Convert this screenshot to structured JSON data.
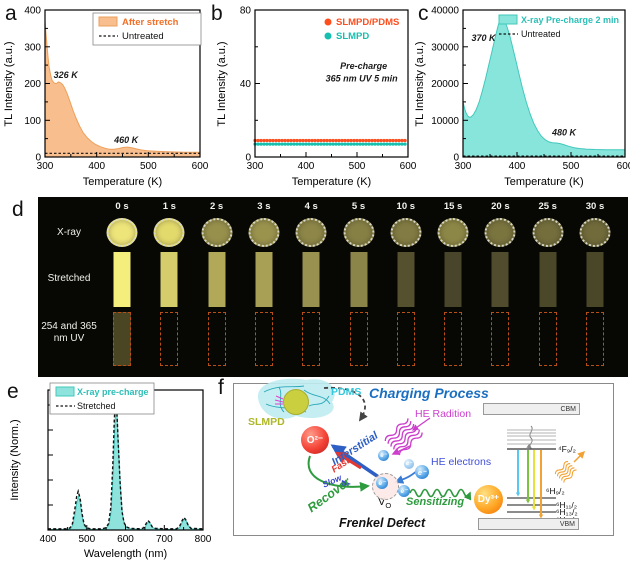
{
  "panel_labels": {
    "a": "a",
    "b": "b",
    "c": "c",
    "d": "d",
    "e": "e",
    "f": "f"
  },
  "chart_data": [
    {
      "id": "a",
      "type": "area",
      "xlabel": "Temperature (K)",
      "ylabel": "TL Intensity (a.u.)",
      "xlim": [
        300,
        600
      ],
      "ylim": [
        0,
        400
      ],
      "xticks": [
        300,
        400,
        500,
        600
      ],
      "xminor": [
        350,
        450,
        550
      ],
      "yticks": [
        0,
        100,
        200,
        300,
        400
      ],
      "yminor": [
        50,
        150,
        250,
        350
      ],
      "series": [
        {
          "name": "After stretch",
          "kind": "area",
          "fill": "#F8BE8D",
          "edge": "#EDA05C",
          "points": [
            [
              300,
              370
            ],
            [
              302,
              335
            ],
            [
              304,
              300
            ],
            [
              306,
              270
            ],
            [
              308,
              245
            ],
            [
              311,
              222
            ],
            [
              314,
              208
            ],
            [
              318,
              201
            ],
            [
              322,
              200
            ],
            [
              326,
              204
            ],
            [
              330,
              202
            ],
            [
              334,
              197
            ],
            [
              338,
              188
            ],
            [
              343,
              172
            ],
            [
              348,
              152
            ],
            [
              354,
              128
            ],
            [
              360,
              106
            ],
            [
              367,
              84
            ],
            [
              374,
              66
            ],
            [
              382,
              52
            ],
            [
              390,
              42
            ],
            [
              398,
              34
            ],
            [
              407,
              28
            ],
            [
              416,
              24
            ],
            [
              425,
              21
            ],
            [
              434,
              21
            ],
            [
              443,
              23
            ],
            [
              452,
              26
            ],
            [
              460,
              27
            ],
            [
              468,
              25
            ],
            [
              477,
              22
            ],
            [
              487,
              19
            ],
            [
              498,
              17
            ],
            [
              510,
              16
            ],
            [
              525,
              15
            ],
            [
              545,
              14
            ],
            [
              570,
              13
            ],
            [
              600,
              13
            ]
          ]
        },
        {
          "name": "Untreated",
          "kind": "dash",
          "color": "#111111",
          "points": [
            [
              300,
              10
            ],
            [
              600,
              10
            ]
          ]
        }
      ],
      "legend": {
        "box": true,
        "items": [
          {
            "swatch": "fill",
            "fill": "#F8BE8D",
            "edge": "#EDA05C",
            "label": "After stretch",
            "color": "#F26F28"
          },
          {
            "swatch": "dash",
            "label": "Untreated",
            "color": "#111111"
          }
        ]
      },
      "annotations": [
        {
          "text": "326 K",
          "x": 340,
          "y": 215
        },
        {
          "text": "460 K",
          "x": 457,
          "y": 38
        }
      ]
    },
    {
      "id": "b",
      "type": "scatter",
      "xlabel": "Temperature (K)",
      "ylabel": "TL Intensity (a.u.)",
      "xlim": [
        300,
        600
      ],
      "ylim": [
        0,
        80
      ],
      "xticks": [
        300,
        400,
        500,
        600
      ],
      "xminor": [
        350,
        450,
        550
      ],
      "yticks": [
        0,
        40,
        80
      ],
      "yminor": [
        20,
        60
      ],
      "series": [
        {
          "name": "SLMPD/PDMS",
          "kind": "dots",
          "color": "#FF4E1E",
          "points": [
            [
              300,
              9
            ],
            [
              600,
              9
            ]
          ]
        },
        {
          "name": "SLMPD",
          "kind": "dots",
          "color": "#17BFAF",
          "points": [
            [
              300,
              7
            ],
            [
              600,
              7
            ]
          ]
        }
      ],
      "legend": {
        "box": false,
        "items": [
          {
            "swatch": "dot",
            "dot": "#FF4E1E",
            "label": "SLMPD/PDMS",
            "color": "#FF4E1E"
          },
          {
            "swatch": "dot",
            "dot": "#17BFAF",
            "label": "SLMPD",
            "color": "#17BFAF"
          }
        ]
      },
      "annotations": [
        {
          "text": "Pre-charge",
          "x": 513,
          "y": 48
        },
        {
          "text": "365 nm UV  5 min",
          "x": 509,
          "y": 41
        }
      ]
    },
    {
      "id": "c",
      "type": "area",
      "xlabel": "Temperature (K)",
      "ylabel": "TL Intensity (a.u.)",
      "xlim": [
        300,
        600
      ],
      "ylim": [
        0,
        40000
      ],
      "xticks": [
        300,
        400,
        500,
        600
      ],
      "xminor": [
        350,
        450,
        550
      ],
      "yticks": [
        0,
        10000,
        20000,
        30000,
        40000
      ],
      "yminor": [
        5000,
        15000,
        25000,
        35000
      ],
      "series": [
        {
          "name": "X-ray Pre-charge 2 min",
          "kind": "area",
          "fill": "#87E5DC",
          "edge": "#43C8BC",
          "points": [
            [
              300,
              15000
            ],
            [
              303,
              13200
            ],
            [
              306,
              11900
            ],
            [
              309,
              11100
            ],
            [
              312,
              10800
            ],
            [
              315,
              10900
            ],
            [
              319,
              11500
            ],
            [
              324,
              12800
            ],
            [
              330,
              15000
            ],
            [
              336,
              18000
            ],
            [
              342,
              21500
            ],
            [
              348,
              25200
            ],
            [
              354,
              29000
            ],
            [
              359,
              32200
            ],
            [
              364,
              35200
            ],
            [
              368,
              37200
            ],
            [
              371,
              38000
            ],
            [
              374,
              37800
            ],
            [
              378,
              36800
            ],
            [
              382,
              35200
            ],
            [
              387,
              32800
            ],
            [
              392,
              29800
            ],
            [
              398,
              26200
            ],
            [
              404,
              22400
            ],
            [
              410,
              18800
            ],
            [
              417,
              15000
            ],
            [
              424,
              11800
            ],
            [
              431,
              9200
            ],
            [
              438,
              7200
            ],
            [
              445,
              5700
            ],
            [
              452,
              4700
            ],
            [
              459,
              4100
            ],
            [
              466,
              3900
            ],
            [
              473,
              3800
            ],
            [
              480,
              3650
            ],
            [
              488,
              3300
            ],
            [
              496,
              2900
            ],
            [
              505,
              2550
            ],
            [
              515,
              2300
            ],
            [
              528,
              2150
            ],
            [
              545,
              2050
            ],
            [
              565,
              2000
            ],
            [
              600,
              1950
            ]
          ]
        },
        {
          "name": "Untreated",
          "kind": "dash",
          "color": "#111111",
          "points": [
            [
              300,
              250
            ],
            [
              600,
              250
            ]
          ]
        }
      ],
      "legend": {
        "box": false,
        "items": [
          {
            "swatch": "fill",
            "fill": "#87E5DC",
            "edge": "#43C8BC",
            "label": "X-ray Pre-charge 2 min",
            "color": "#2BBFB7",
            "fs": 9
          },
          {
            "swatch": "dash",
            "label": "Untreated",
            "color": "#111111",
            "fs": 9
          }
        ]
      },
      "annotations": [
        {
          "text": "370 K",
          "x": 338,
          "y": 31500
        },
        {
          "text": "480 K",
          "x": 487,
          "y": 5800
        }
      ]
    },
    {
      "id": "e",
      "type": "area",
      "xlabel": "Wavelength (nm)",
      "ylabel": "Intensity (Norm.)",
      "xlim": [
        400,
        800
      ],
      "ylim": [
        0,
        1.12
      ],
      "xticks": [
        400,
        500,
        600,
        700,
        800
      ],
      "xminor": [
        450,
        550,
        650,
        750
      ],
      "yticks": [
        0.2,
        0.4,
        0.6,
        0.8,
        1.0
      ],
      "yminor": [],
      "ytick_labels": false,
      "series": [
        {
          "name": "X-ray pre-charge",
          "kind": "area",
          "fill": "#8FE3DD",
          "edge": "#43C8BC",
          "points": [
            [
              400,
              0.005
            ],
            [
              450,
              0.005
            ],
            [
              458,
              0.01
            ],
            [
              464,
              0.04
            ],
            [
              470,
              0.13
            ],
            [
              475,
              0.23
            ],
            [
              479,
              0.27
            ],
            [
              483,
              0.22
            ],
            [
              488,
              0.11
            ],
            [
              493,
              0.04
            ],
            [
              499,
              0.012
            ],
            [
              510,
              0.005
            ],
            [
              540,
              0.005
            ],
            [
              550,
              0.012
            ],
            [
              557,
              0.04
            ],
            [
              563,
              0.15
            ],
            [
              568,
              0.45
            ],
            [
              572,
              0.8
            ],
            [
              575,
              0.97
            ],
            [
              578,
              0.93
            ],
            [
              582,
              0.65
            ],
            [
              587,
              0.33
            ],
            [
              592,
              0.13
            ],
            [
              597,
              0.05
            ],
            [
              603,
              0.02
            ],
            [
              612,
              0.01
            ],
            [
              640,
              0.005
            ],
            [
              648,
              0.012
            ],
            [
              654,
              0.04
            ],
            [
              659,
              0.065
            ],
            [
              664,
              0.05
            ],
            [
              670,
              0.02
            ],
            [
              678,
              0.01
            ],
            [
              700,
              0.005
            ],
            [
              732,
              0.005
            ],
            [
              740,
              0.02
            ],
            [
              746,
              0.06
            ],
            [
              752,
              0.09
            ],
            [
              757,
              0.07
            ],
            [
              763,
              0.03
            ],
            [
              770,
              0.01
            ],
            [
              800,
              0.005
            ]
          ]
        },
        {
          "name": "Stretched",
          "kind": "dash",
          "color": "#111111",
          "dash": "3 2.2",
          "width": 1.4,
          "points": [
            [
              400,
              0.01
            ],
            [
              450,
              0.01
            ],
            [
              457,
              0.018
            ],
            [
              463,
              0.05
            ],
            [
              469,
              0.16
            ],
            [
              474,
              0.27
            ],
            [
              478,
              0.31
            ],
            [
              483,
              0.25
            ],
            [
              488,
              0.13
            ],
            [
              493,
              0.05
            ],
            [
              499,
              0.018
            ],
            [
              510,
              0.01
            ],
            [
              540,
              0.01
            ],
            [
              549,
              0.018
            ],
            [
              556,
              0.05
            ],
            [
              562,
              0.18
            ],
            [
              567,
              0.5
            ],
            [
              571,
              0.88
            ],
            [
              574,
              1.04
            ],
            [
              577,
              1.0
            ],
            [
              581,
              0.72
            ],
            [
              586,
              0.38
            ],
            [
              591,
              0.15
            ],
            [
              596,
              0.06
            ],
            [
              602,
              0.025
            ],
            [
              612,
              0.013
            ],
            [
              640,
              0.01
            ],
            [
              647,
              0.018
            ],
            [
              653,
              0.05
            ],
            [
              658,
              0.075
            ],
            [
              663,
              0.06
            ],
            [
              669,
              0.025
            ],
            [
              677,
              0.013
            ],
            [
              700,
              0.01
            ],
            [
              731,
              0.01
            ],
            [
              739,
              0.025
            ],
            [
              745,
              0.07
            ],
            [
              751,
              0.1
            ],
            [
              756,
              0.08
            ],
            [
              762,
              0.035
            ],
            [
              769,
              0.013
            ],
            [
              800,
              0.01
            ]
          ]
        }
      ],
      "legend": {
        "box": true,
        "items": [
          {
            "swatch": "fill",
            "fill": "#8FE3DD",
            "edge": "#43C8BC",
            "label": "X-ray pre-charge",
            "color": "#2BBFB7",
            "fs": 9
          },
          {
            "swatch": "dash",
            "label": "Stretched",
            "color": "#111111",
            "fs": 9
          }
        ]
      },
      "annotations": []
    }
  ],
  "panel_d": {
    "row_labels": [
      "X-ray",
      "Stretched",
      "254 and 365\nnm UV"
    ],
    "times": [
      "0 s",
      "1 s",
      "2 s",
      "3 s",
      "4 s",
      "5 s",
      "10 s",
      "15 s",
      "20 s",
      "25 s",
      "30 s"
    ],
    "circle_colors": [
      "#EDE47A",
      "#E3DA6C",
      "#97904C",
      "#9A934E",
      "#8D8648",
      "#878045",
      "#827B43",
      "#8D8747",
      "#7A743F",
      "#746E3D",
      "#716B3B"
    ],
    "bar_colors": [
      "#F4EE7C",
      "#D5CD6B",
      "#B1A958",
      "#A7A055",
      "#989150",
      "#8C854A",
      "#55512F",
      "#48452B",
      "#504C2D",
      "#4B4829",
      "#4A4628"
    ],
    "uv_colors": [
      "#4A4522",
      "",
      "",
      "",
      "",
      "",
      "",
      "",
      "",
      "",
      ""
    ],
    "uv_border": "#B85016"
  },
  "panel_f": {
    "title": "Charging Process",
    "pdms": "PDMS",
    "slmpd": "SLMPD",
    "o2": "O²⁻",
    "interstitial": "Interstitial",
    "fast": "Fast",
    "recover": "Recover",
    "slow": "Slow",
    "he_radiation": "HE Radition",
    "he_electrons": "HE electrons",
    "electron": "e⁻",
    "vo_main": "V",
    "vo_sub": "O",
    "sensitizing": "Sensitizing",
    "dy": "Dy³⁺",
    "frenkel": "Frenkel Defect",
    "cbm": "CBM",
    "vbm": "VBM",
    "f_level": "⁴F₉/₂",
    "h_levels": [
      "⁶H₉/₂",
      "⁶H₁₁/₂",
      "⁶H₁₃/₂",
      "⁶H₁₅/₂"
    ],
    "transition_colors": [
      "#56C8F2",
      "#7CC243",
      "#E6E13C",
      "#F2A133"
    ]
  }
}
